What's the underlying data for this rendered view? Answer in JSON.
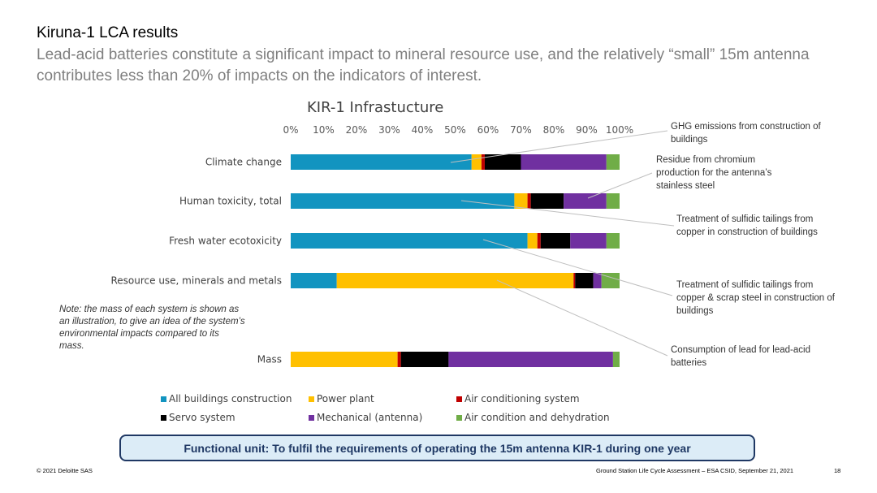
{
  "slide": {
    "title": "Kiruna-1 LCA results",
    "subtitle": "Lead-acid batteries constitute a significant impact to mineral resource use, and the relatively “small” 15m antenna contributes less than 20% of impacts on the indicators of interest.",
    "note": "Note: the mass of each system is shown as an illustration, to give an idea of the system’s environmental impacts compared to its mass.",
    "functional_unit": "Functional unit: To fulfil the requirements of operating the 15m antenna KIR-1 during one year",
    "footer_left": "© 2021 Deloitte SAS",
    "footer_right": "Ground Station Life Cycle Assessment – ESA CSID, September 21, 2021",
    "page_number": "18"
  },
  "annotations": [
    {
      "text": "GHG emissions from construction of buildings"
    },
    {
      "text": "Residue from chromium production for the antenna’s stainless steel"
    },
    {
      "text": "Treatment of sulfidic tailings from copper in construction of buildings"
    },
    {
      "text": "Treatment of sulfidic tailings from copper & scrap steel in construction of buildings"
    },
    {
      "text": "Consumption of lead for lead-acid batteries"
    }
  ],
  "chart_data": {
    "type": "bar",
    "orientation": "horizontal",
    "stacked": "100%",
    "title": "KIR-1 Infrastucture",
    "x_ticks": [
      "0%",
      "10%",
      "20%",
      "30%",
      "40%",
      "50%",
      "60%",
      "70%",
      "80%",
      "90%",
      "100%"
    ],
    "xlim": [
      0,
      100
    ],
    "categories": [
      "Climate change",
      "Human toxicity, total",
      "Fresh water ecotoxicity",
      "Resource use, minerals and metals",
      "Mass"
    ],
    "series": [
      {
        "name": "All buildings construction",
        "color": "#1294c0",
        "values": [
          55,
          68,
          72,
          14,
          0
        ]
      },
      {
        "name": "Power plant",
        "color": "#ffc000",
        "values": [
          3,
          4,
          3,
          72,
          32.5
        ]
      },
      {
        "name": "Air conditioning system",
        "color": "#c00000",
        "values": [
          1,
          1,
          1,
          0.5,
          1
        ]
      },
      {
        "name": "Servo system",
        "color": "#000000",
        "values": [
          11,
          10,
          9,
          5.5,
          14.5
        ]
      },
      {
        "name": "Mechanical (antenna)",
        "color": "#7030a0",
        "values": [
          26,
          13,
          11,
          2.5,
          50
        ]
      },
      {
        "name": "Air condition and dehydration",
        "color": "#70ad47",
        "values": [
          4,
          4,
          4,
          5.5,
          2
        ]
      }
    ],
    "legend_position": "bottom",
    "grid": false
  }
}
